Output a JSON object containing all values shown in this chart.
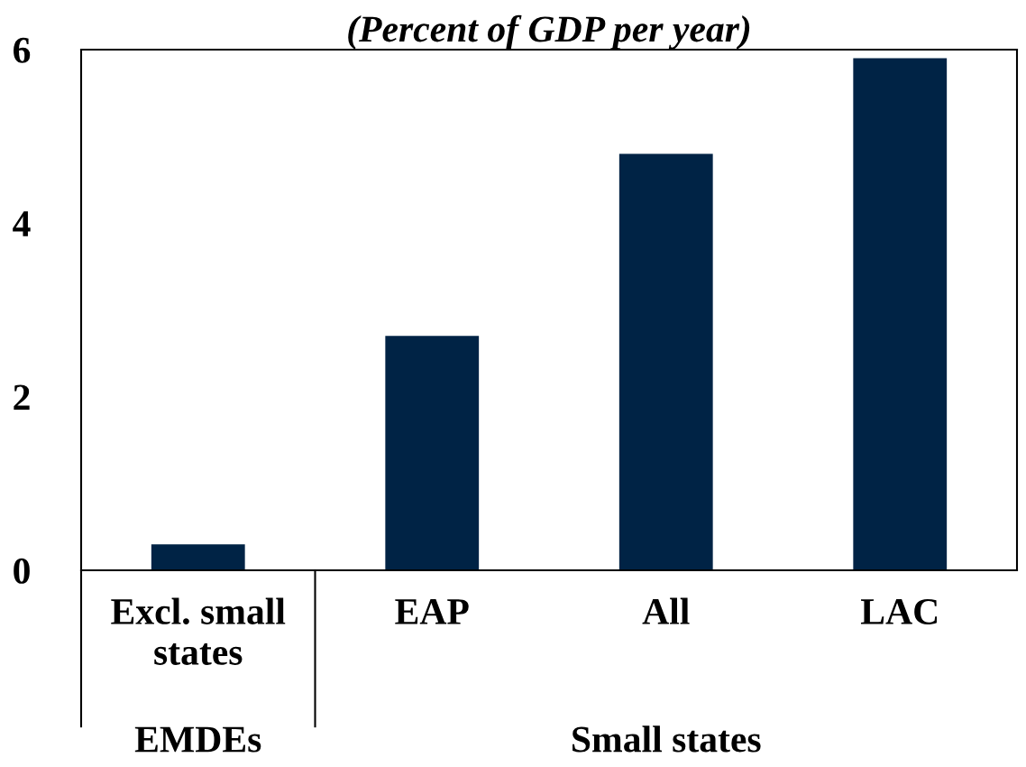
{
  "chart_data": {
    "type": "bar",
    "title": "(Percent of GDP per year)",
    "categories": [
      "Excl. small\nstates",
      "EAP",
      "All",
      "LAC"
    ],
    "values": [
      0.3,
      2.7,
      4.8,
      5.9
    ],
    "color": "#002345",
    "ylim": [
      0,
      6
    ],
    "yticks": [
      0,
      2,
      4,
      6
    ],
    "grid": false,
    "annotations": [
      "EMDEs",
      "Small states"
    ]
  }
}
